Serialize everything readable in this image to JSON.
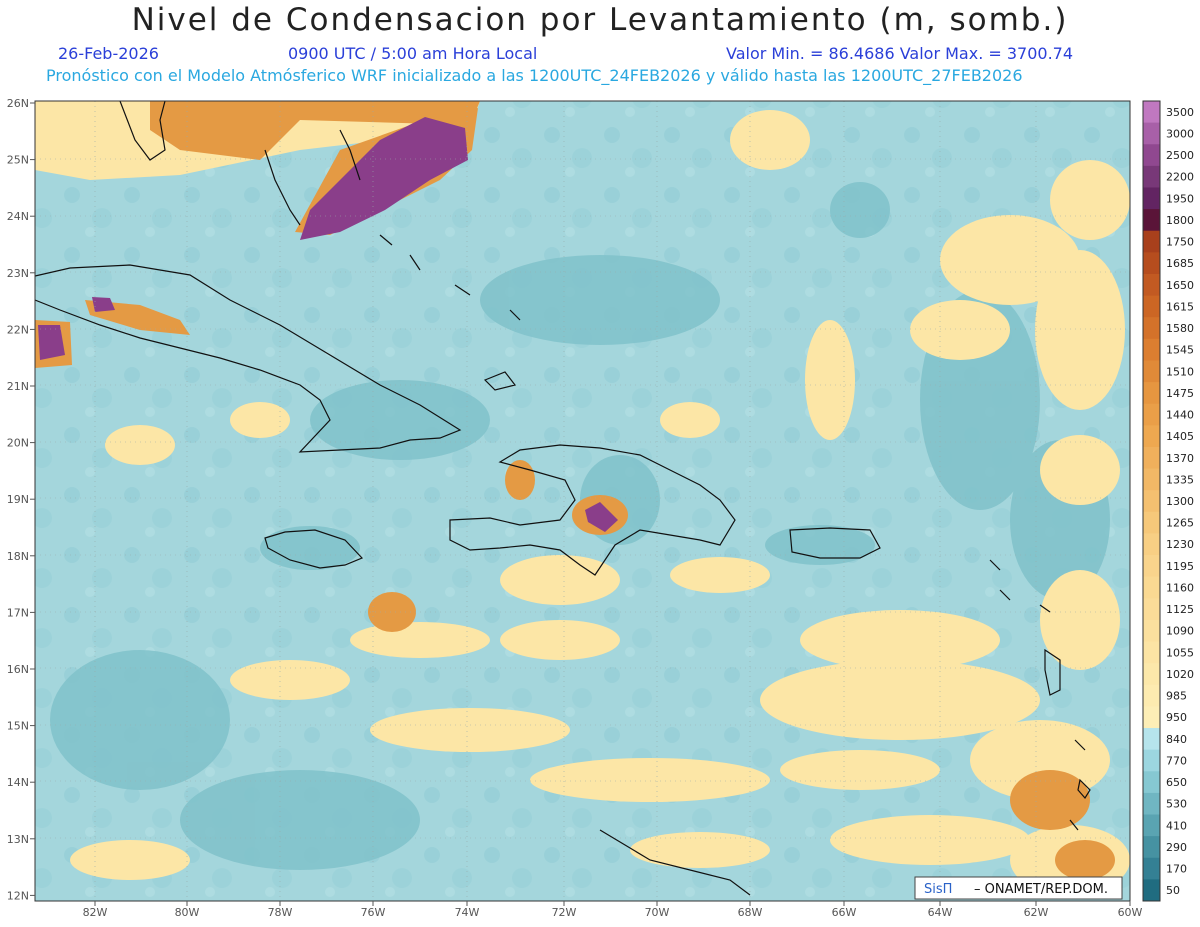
{
  "title": "Nivel de Condensacion por Levantamiento (m, somb.)",
  "date": "26-Feb-2026",
  "time": "0900 UTC / 5:00 am Hora Local",
  "min_max": "Valor Min. = 86.4686   Valor Max. = 3700.74",
  "description": "Pronóstico con el Modelo Atmósferico WRF inicializado a las 1200UTC_24FEB2026 y válido hasta las  1200UTC_27FEB2026",
  "latitude_labels": [
    "26N",
    "25N",
    "24N",
    "23N",
    "22N",
    "21N",
    "20N",
    "19N",
    "18N",
    "17N",
    "16N",
    "15N",
    "14N",
    "13N",
    "12N"
  ],
  "longitude_labels": [
    "82W",
    "80W",
    "78W",
    "76W",
    "74W",
    "72W",
    "70W",
    "68W",
    "66W",
    "64W",
    "62W",
    "60W"
  ],
  "legend": {
    "levels": [
      "3500",
      "3000",
      "2500",
      "2200",
      "1950",
      "1800",
      "1750",
      "1685",
      "1650",
      "1615",
      "1580",
      "1545",
      "1510",
      "1475",
      "1440",
      "1405",
      "1370",
      "1335",
      "1300",
      "1265",
      "1230",
      "1195",
      "1160",
      "1125",
      "1090",
      "1055",
      "1020",
      "985",
      "950",
      "840",
      "770",
      "650",
      "530",
      "410",
      "290",
      "170",
      "50"
    ],
    "colors": [
      "#c078c0",
      "#a860a8",
      "#904890",
      "#783878",
      "#622462",
      "#5a1438",
      "#a8401c",
      "#b64d1e",
      "#c25a22",
      "#cc6624",
      "#d4722a",
      "#dc7e30",
      "#e08a38",
      "#e69640",
      "#ea9f48",
      "#eea850",
      "#f0b05c",
      "#f2b866",
      "#f4c070",
      "#f6c87a",
      "#f8cf84",
      "#f9d48c",
      "#fad992",
      "#fbdc98",
      "#fbe09e",
      "#fce4a4",
      "#fce8aa",
      "#fdebb0",
      "#fdeeb6",
      "#b6e4ec",
      "#9cd6e0",
      "#86c8d2",
      "#70b6c2",
      "#5aa4b2",
      "#4692a2",
      "#348094",
      "#206c80"
    ]
  },
  "credit": {
    "brand": "SisΠ",
    "text": "– ONAMET/REP.DOM."
  },
  "palette": {
    "sea": "#a4d6dc",
    "sea_dark": "#78bcc4",
    "yellow": "#fce6a6",
    "orange": "#e49a44",
    "purple": "#8a3e8a",
    "deep_orange": "#c46a28"
  }
}
